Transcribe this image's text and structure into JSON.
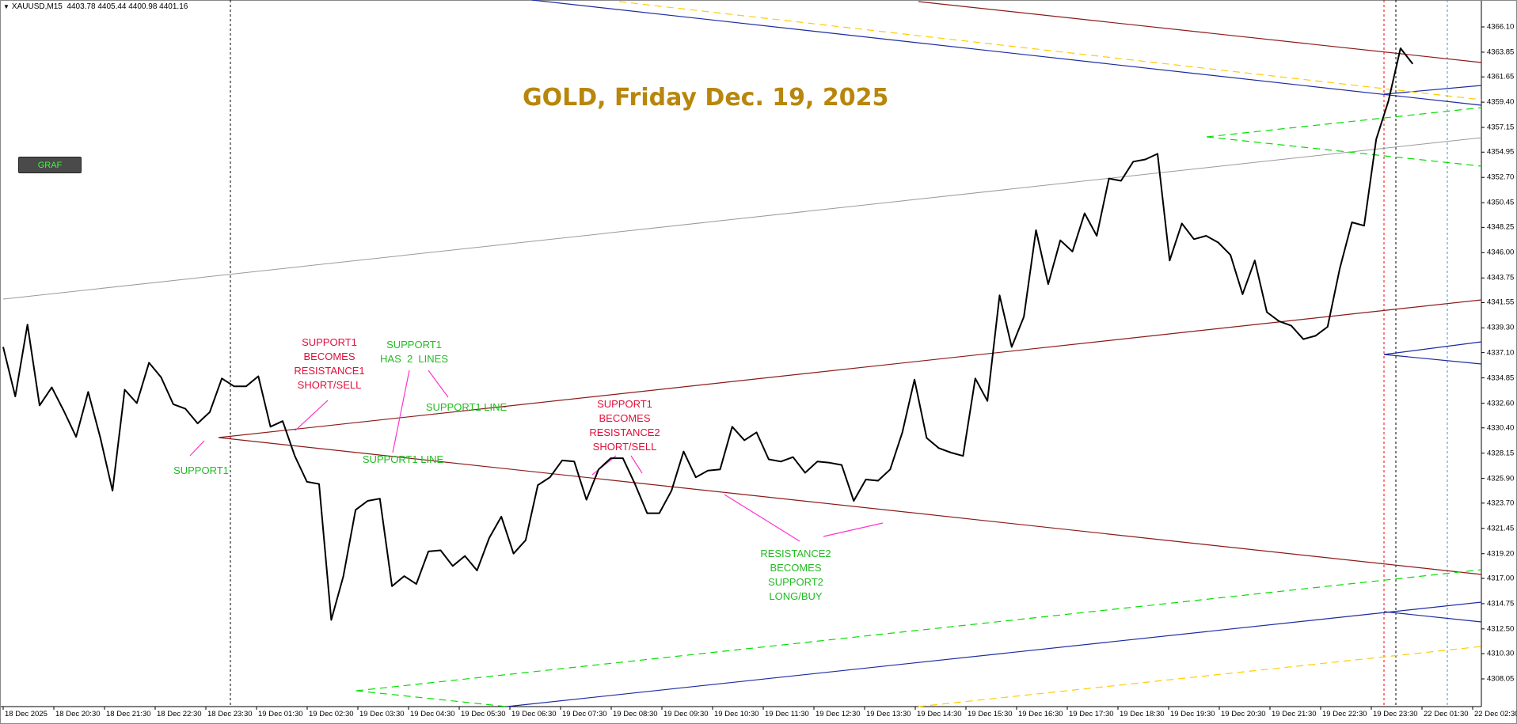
{
  "header": {
    "symbol": "XAUUSD,M15",
    "ohlc": "4403.78 4405.44 4400.98 4401.16"
  },
  "button": {
    "label": "GRAF"
  },
  "title": "GOLD, Friday Dec. 19, 2025",
  "annotations": {
    "support1_becomes_resistance1": "SUPPORT1\nBECOMES\nRESISTANCE1\nSHORT/SELL",
    "support1_has_2_lines": "SUPPORT1\nHAS  2  LINES",
    "support1_line_upper": "SUPPORT1 LINE",
    "support1_line_lower": "SUPPORT1 LINE",
    "support1": "SUPPORT1",
    "support1_becomes_resistance2": "SUPPORT1\nBECOMES\nRESISTANCE2\nSHORT/SELL",
    "resistance2_becomes_support2": "RESISTANCE2\nBECOMES\nSUPPORT2\nLONG/BUY"
  },
  "colors": {
    "price": "#000000",
    "brown_line": "#8b1a1a",
    "navy_line": "#1c2aa0",
    "gold_dashed": "#ffcc00",
    "green_dashed": "#00e000",
    "gray_line": "#9a9a9a",
    "magenta_pointer": "#ff33cc",
    "red_vline": "#ff0000",
    "cyan_vline": "#3399cc",
    "title": "#b8860b"
  },
  "chart_data": {
    "type": "line",
    "timeframe": "M15",
    "x_tick_labels": [
      "18 Dec 2025",
      "18 Dec 20:30",
      "18 Dec 21:30",
      "18 Dec 22:30",
      "18 Dec 23:30",
      "19 Dec 01:30",
      "19 Dec 02:30",
      "19 Dec 03:30",
      "19 Dec 04:30",
      "19 Dec 05:30",
      "19 Dec 06:30",
      "19 Dec 07:30",
      "19 Dec 08:30",
      "19 Dec 09:30",
      "19 Dec 10:30",
      "19 Dec 11:30",
      "19 Dec 12:30",
      "19 Dec 13:30",
      "19 Dec 14:30",
      "19 Dec 15:30",
      "19 Dec 16:30",
      "19 Dec 17:30",
      "19 Dec 18:30",
      "19 Dec 19:30",
      "19 Dec 20:30",
      "19 Dec 21:30",
      "19 Dec 22:30",
      "19 Dec 23:30",
      "22 Dec 01:30",
      "22 Dec 02:30"
    ],
    "y_tick_labels": [
      "4366.10",
      "4363.85",
      "4361.65",
      "4359.40",
      "4357.15",
      "4354.95",
      "4352.70",
      "4350.45",
      "4348.25",
      "4346.00",
      "4343.75",
      "4341.55",
      "4339.30",
      "4337.10",
      "4334.85",
      "4332.60",
      "4330.40",
      "4328.15",
      "4325.90",
      "4323.70",
      "4321.45",
      "4319.20",
      "4317.00",
      "4314.75",
      "4312.50",
      "4310.30",
      "4308.05"
    ],
    "ylim": [
      4307.9,
      4368.2
    ],
    "close_values": [
      4337.6,
      4333.2,
      4339.6,
      4332.4,
      4334.0,
      4331.9,
      4329.6,
      4333.6,
      4329.5,
      4324.8,
      4333.8,
      4332.6,
      4336.2,
      4334.9,
      4332.5,
      4332.1,
      4330.8,
      4331.8,
      4334.8,
      4334.1,
      4334.1,
      4335.0,
      4330.5,
      4331.0,
      4327.9,
      4325.6,
      4325.4,
      4313.3,
      4317.2,
      4323.1,
      4323.9,
      4324.1,
      4316.3,
      4317.2,
      4316.5,
      4319.4,
      4319.5,
      4318.1,
      4319.0,
      4317.7,
      4320.6,
      4322.5,
      4319.2,
      4320.4,
      4325.3,
      4326.0,
      4327.5,
      4327.4,
      4324.0,
      4326.7,
      4327.7,
      4327.7,
      4325.4,
      4322.8,
      4322.8,
      4324.8,
      4328.3,
      4326.0,
      4326.6,
      4326.7,
      4330.5,
      4329.3,
      4330.0,
      4327.6,
      4327.4,
      4327.8,
      4326.4,
      4327.4,
      4327.3,
      4327.1,
      4323.9,
      4325.8,
      4325.7,
      4326.7,
      4330.0,
      4334.7,
      4329.5,
      4328.6,
      4328.2,
      4327.9,
      4334.8,
      4332.8,
      4342.2,
      4337.6,
      4340.3,
      4348.0,
      4343.2,
      4347.1,
      4346.1,
      4349.5,
      4347.5,
      4352.6,
      4352.4,
      4354.1,
      4354.3,
      4354.8,
      4345.3,
      4348.6,
      4347.2,
      4347.5,
      4346.9,
      4345.8,
      4342.3,
      4345.3,
      4340.7,
      4339.9,
      4339.5,
      4338.3,
      4338.6,
      4339.4,
      4344.6,
      4348.7,
      4348.4,
      4356.1,
      4359.5,
      4364.2,
      4362.8
    ],
    "series": [
      {
        "name": "XAUUSD,M15",
        "values_ref": "close_values"
      }
    ],
    "levels": [
      {
        "kind": "trendline",
        "color": "brown",
        "from": [
          "18 Dec 23:30",
          4331.2
        ],
        "to": [
          "22 Dec 02:30",
          4341.3
        ]
      },
      {
        "kind": "trendline",
        "color": "brown",
        "from": [
          "18 Dec 23:30",
          4331.2
        ],
        "to": [
          "22 Dec 02:30",
          4319.2
        ]
      },
      {
        "kind": "trendline",
        "color": "brown",
        "from": [
          "19 Dec 14:00",
          4368.2
        ],
        "to": [
          "22 Dec 02:30",
          4363.6
        ]
      },
      {
        "kind": "trendline",
        "color": "navy",
        "from": [
          "19 Dec 06:00",
          4308.0
        ],
        "to": [
          "22 Dec 02:30",
          4317.2
        ]
      },
      {
        "kind": "trendline",
        "color": "gray",
        "from": [
          "18 Dec 2025",
          4343.0
        ],
        "to": [
          "22 Dec 02:30",
          4356.5
        ]
      }
    ],
    "grid": false,
    "legend": "none"
  }
}
